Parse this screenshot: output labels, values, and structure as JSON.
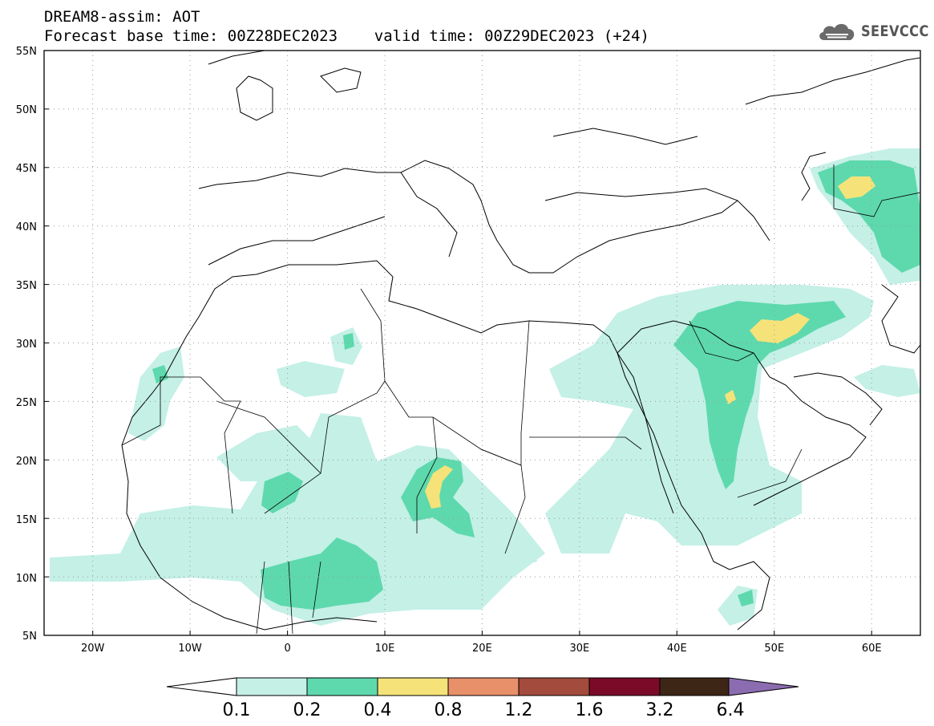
{
  "header": {
    "line1": "DREAM8-assim: AOT",
    "line2": "Forecast base time: 00Z28DEC2023    valid time: 00Z29DEC2023 (+24)"
  },
  "logo": {
    "text": "SEEVCCC",
    "icon": "cloud-icon"
  },
  "map": {
    "lat_range": [
      5,
      55
    ],
    "lon_range": [
      -25,
      65
    ],
    "grid": "dotted",
    "lat_labels": [
      "55N",
      "50N",
      "45N",
      "40N",
      "35N",
      "30N",
      "25N",
      "20N",
      "15N",
      "10N",
      "5N"
    ],
    "lon_labels": [
      "20W",
      "10W",
      "0",
      "10E",
      "20E",
      "30E",
      "40E",
      "50E",
      "60E"
    ]
  },
  "colorbar": {
    "labels": [
      "0.1",
      "0.2",
      "0.4",
      "0.8",
      "1.2",
      "1.6",
      "3.2",
      "6.4"
    ],
    "colors": [
      "#ffffff",
      "#c4f0e6",
      "#5ed9ad",
      "#f5e37a",
      "#e8906a",
      "#a34b3c",
      "#7a0a28",
      "#3d2616",
      "#8c6cb0"
    ]
  }
}
